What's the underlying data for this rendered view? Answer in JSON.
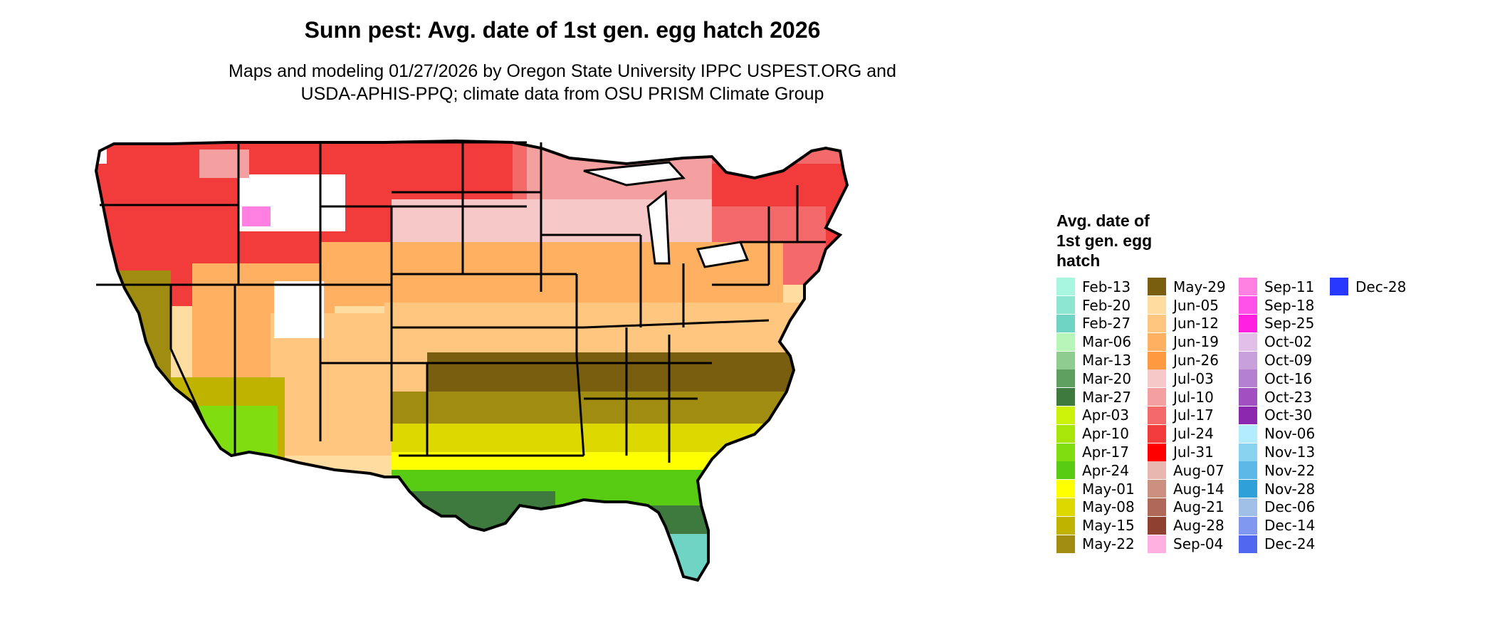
{
  "title": "Sunn pest: Avg. date of 1st gen. egg hatch 2026",
  "subtitle_lines": [
    "Maps and modeling 01/27/2026 by Oregon State University IPPC USPEST.ORG and",
    "USDA-APHIS-PPQ; climate data from OSU PRISM Climate Group"
  ],
  "legend": {
    "title_lines": [
      "Avg. date of",
      "1st gen. egg",
      "hatch"
    ],
    "columns": [
      [
        {
          "label": "Feb-13",
          "color": "#a8f5e0"
        },
        {
          "label": "Feb-20",
          "color": "#8de6d0"
        },
        {
          "label": "Feb-27",
          "color": "#6fd4c4"
        },
        {
          "label": "Mar-06",
          "color": "#b8f5b8"
        },
        {
          "label": "Mar-13",
          "color": "#8fcc8f"
        },
        {
          "label": "Mar-20",
          "color": "#5e9e5e"
        },
        {
          "label": "Mar-27",
          "color": "#3e7a3e"
        },
        {
          "label": "Apr-03",
          "color": "#ccf20a"
        },
        {
          "label": "Apr-10",
          "color": "#a8e60a"
        },
        {
          "label": "Apr-17",
          "color": "#80dd10"
        },
        {
          "label": "Apr-24",
          "color": "#58cc12"
        },
        {
          "label": "May-01",
          "color": "#ffff00"
        },
        {
          "label": "May-08",
          "color": "#ddd800"
        },
        {
          "label": "May-15",
          "color": "#bfb300"
        },
        {
          "label": "May-22",
          "color": "#a08c10"
        }
      ],
      [
        {
          "label": "May-29",
          "color": "#7a5e10"
        },
        {
          "label": "Jun-05",
          "color": "#ffdca0"
        },
        {
          "label": "Jun-12",
          "color": "#ffc680"
        },
        {
          "label": "Jun-19",
          "color": "#ffb060"
        },
        {
          "label": "Jun-26",
          "color": "#ff9a40"
        },
        {
          "label": "Jul-03",
          "color": "#f7c8c8"
        },
        {
          "label": "Jul-10",
          "color": "#f4a0a0"
        },
        {
          "label": "Jul-17",
          "color": "#f46a6a"
        },
        {
          "label": "Jul-24",
          "color": "#f23c3c"
        },
        {
          "label": "Jul-31",
          "color": "#ff0000"
        },
        {
          "label": "Aug-07",
          "color": "#e8b8b0"
        },
        {
          "label": "Aug-14",
          "color": "#cc9080"
        },
        {
          "label": "Aug-21",
          "color": "#b06858"
        },
        {
          "label": "Aug-28",
          "color": "#904030"
        },
        {
          "label": "Sep-04",
          "color": "#ffb0e0"
        }
      ],
      [
        {
          "label": "Sep-11",
          "color": "#ff80e0"
        },
        {
          "label": "Sep-18",
          "color": "#ff50e8"
        },
        {
          "label": "Sep-25",
          "color": "#ff20e0"
        },
        {
          "label": "Oct-02",
          "color": "#e0c0e8"
        },
        {
          "label": "Oct-09",
          "color": "#c8a0dc"
        },
        {
          "label": "Oct-16",
          "color": "#b480d0"
        },
        {
          "label": "Oct-23",
          "color": "#a050c0"
        },
        {
          "label": "Oct-30",
          "color": "#8c28b0"
        },
        {
          "label": "Nov-06",
          "color": "#b4ecff"
        },
        {
          "label": "Nov-13",
          "color": "#88d4f0"
        },
        {
          "label": "Nov-22",
          "color": "#5cb8e8"
        },
        {
          "label": "Nov-28",
          "color": "#30a0d8"
        },
        {
          "label": "Dec-06",
          "color": "#a0c0e8"
        },
        {
          "label": "Dec-14",
          "color": "#8098f0"
        },
        {
          "label": "Dec-24",
          "color": "#5068f0"
        }
      ],
      [
        {
          "label": "Dec-28",
          "color": "#2838ff"
        }
      ]
    ]
  },
  "map_palette": {
    "outline": "#000000",
    "mountains_snow": "#ffffff",
    "mountains_pink": "#ff80e0",
    "west_high": "#f23c3c",
    "north_plains": "#f7c8c8",
    "central": "#ffc680",
    "southeast_brown": "#7a5e10",
    "gulf_yellow": "#ffff00",
    "gulf_green": "#80dd10",
    "florida_south": "#6fd4c4",
    "california_valley": "#a08c10"
  }
}
